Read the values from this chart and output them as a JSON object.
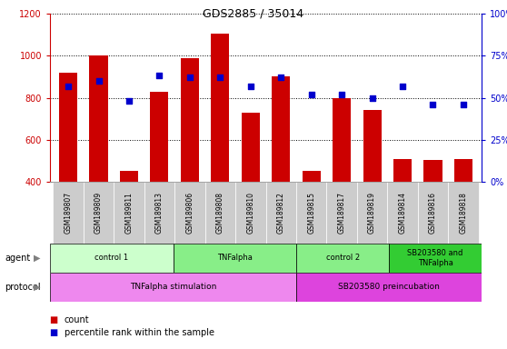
{
  "title": "GDS2885 / 35014",
  "samples": [
    "GSM189807",
    "GSM189809",
    "GSM189811",
    "GSM189813",
    "GSM189806",
    "GSM189808",
    "GSM189810",
    "GSM189812",
    "GSM189815",
    "GSM189817",
    "GSM189819",
    "GSM189814",
    "GSM189816",
    "GSM189818"
  ],
  "counts": [
    920,
    1000,
    450,
    830,
    990,
    1105,
    730,
    900,
    450,
    800,
    740,
    510,
    505,
    510
  ],
  "percentiles": [
    57,
    60,
    48,
    63,
    62,
    62,
    57,
    62,
    52,
    52,
    50,
    57,
    46,
    46
  ],
  "ylim_left": [
    400,
    1200
  ],
  "ylim_right": [
    0,
    100
  ],
  "yticks_left": [
    400,
    600,
    800,
    1000,
    1200
  ],
  "yticks_right": [
    0,
    25,
    50,
    75,
    100
  ],
  "bar_color": "#cc0000",
  "dot_color": "#0000cc",
  "bar_bottom": 400,
  "agent_groups": [
    {
      "label": "control 1",
      "start": 0,
      "end": 4,
      "color": "#ccffcc"
    },
    {
      "label": "TNFalpha",
      "start": 4,
      "end": 8,
      "color": "#88ee88"
    },
    {
      "label": "control 2",
      "start": 8,
      "end": 11,
      "color": "#88ee88"
    },
    {
      "label": "SB203580 and\nTNFalpha",
      "start": 11,
      "end": 14,
      "color": "#33cc33"
    }
  ],
  "protocol_groups": [
    {
      "label": "TNFalpha stimulation",
      "start": 0,
      "end": 8,
      "color": "#ee88ee"
    },
    {
      "label": "SB203580 preincubation",
      "start": 8,
      "end": 14,
      "color": "#dd44dd"
    }
  ],
  "sample_bg_color": "#cccccc",
  "ylabel_left_color": "#cc0000",
  "ylabel_right_color": "#0000cc",
  "legend_items": [
    {
      "label": "count",
      "color": "#cc0000"
    },
    {
      "label": "percentile rank within the sample",
      "color": "#0000cc"
    }
  ]
}
